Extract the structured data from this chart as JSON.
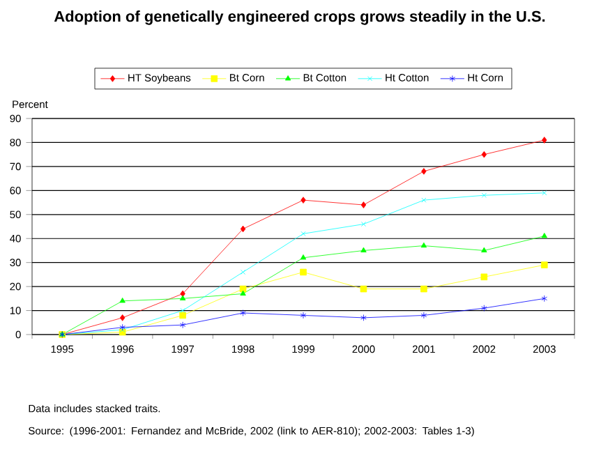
{
  "chart_data": {
    "type": "line",
    "title": "Adoption of genetically engineered crops grows steadily in the U.S.",
    "ylabel": "Percent",
    "categories": [
      "1995",
      "1996",
      "1997",
      "1998",
      "1999",
      "2000",
      "2001",
      "2002",
      "2003"
    ],
    "series": [
      {
        "name": "HT Soybeans",
        "color": "#ff0000",
        "marker": "diamond",
        "values": [
          0,
          7,
          17,
          44,
          56,
          54,
          68,
          75,
          81
        ]
      },
      {
        "name": "Bt Corn",
        "color": "#ffff00",
        "marker": "square",
        "values": [
          0,
          1,
          8,
          19,
          26,
          19,
          19,
          24,
          29
        ]
      },
      {
        "name": "Bt Cotton",
        "color": "#00ff00",
        "marker": "triangle",
        "values": [
          0,
          14,
          15,
          17,
          32,
          35,
          37,
          35,
          41
        ]
      },
      {
        "name": "Ht Cotton",
        "color": "#00ffff",
        "marker": "cross",
        "values": [
          0,
          2,
          10,
          26,
          42,
          46,
          56,
          58,
          59
        ]
      },
      {
        "name": "Ht Corn",
        "color": "#0000ff",
        "marker": "cross",
        "values": [
          0,
          3,
          4,
          9,
          8,
          7,
          8,
          11,
          15
        ]
      }
    ],
    "ylim": [
      0,
      90
    ],
    "yticks": [
      0,
      10,
      20,
      30,
      40,
      50,
      60,
      70,
      80,
      90
    ],
    "grid": "y",
    "legend": "top",
    "annotations": [
      "Data includes stacked traits.",
      "Source: (1996-2001: Fernandez and McBride, 2002 (link to AER-810); 2002-2003: Tables 1-3)"
    ]
  }
}
